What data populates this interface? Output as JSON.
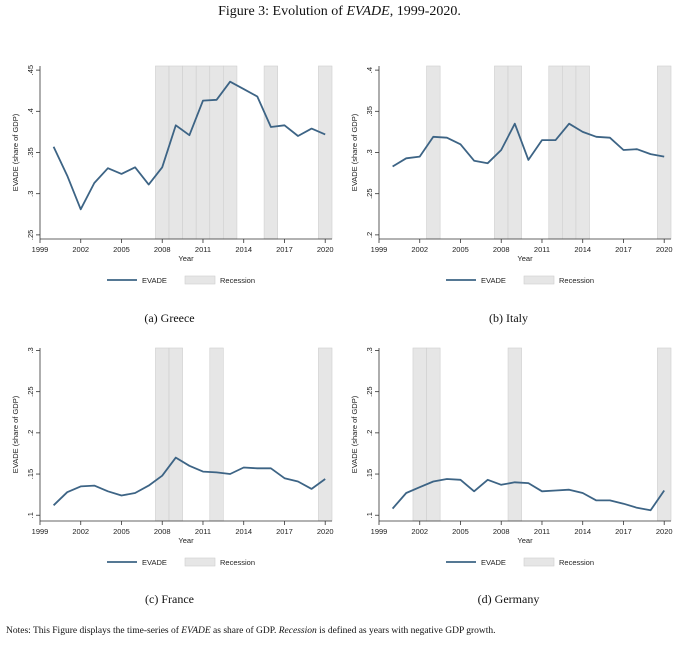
{
  "figure": {
    "title_prefix": "Figure 3: Evolution of ",
    "title_em": "EVADE",
    "title_suffix": ", 1999-2020."
  },
  "notes": {
    "p1": "Notes: This Figure displays the time-series of ",
    "em1": "EVADE",
    "p2": " as share of GDP. ",
    "em2": "Recession",
    "p3": " is defined as years with negative GDP growth."
  },
  "colors": {
    "line": "#3d6485",
    "recession": "#e6e6e6",
    "recession_edge": "#cfcfcf",
    "axis": "#333333"
  },
  "chart_data": [
    {
      "type": "line",
      "caption": "(a) Greece",
      "xlabel": "Year",
      "ylabel": "EVADE (share of GDP)",
      "x_ticks": [
        1999,
        2002,
        2005,
        2008,
        2011,
        2014,
        2017,
        2020
      ],
      "xlim": [
        1999,
        2020.5
      ],
      "y_ticks": [
        0.25,
        0.3,
        0.35,
        0.4,
        0.45
      ],
      "y_tick_labels": [
        ".25",
        ".3",
        ".35",
        ".4",
        ".45"
      ],
      "ylim": [
        0.245,
        0.455
      ],
      "legend": [
        "EVADE",
        "Recession"
      ],
      "recession_years": [
        2008,
        2009,
        2010,
        2011,
        2012,
        2013,
        2016,
        2020
      ],
      "series": [
        {
          "name": "EVADE",
          "x": [
            2000,
            2001,
            2002,
            2003,
            2004,
            2005,
            2006,
            2007,
            2008,
            2009,
            2010,
            2011,
            2012,
            2013,
            2014,
            2015,
            2016,
            2017,
            2018,
            2019,
            2020
          ],
          "y": [
            0.357,
            0.322,
            0.281,
            0.313,
            0.331,
            0.324,
            0.332,
            0.311,
            0.332,
            0.383,
            0.371,
            0.413,
            0.414,
            0.436,
            0.427,
            0.418,
            0.381,
            0.383,
            0.37,
            0.379,
            0.372
          ]
        }
      ]
    },
    {
      "type": "line",
      "caption": "(b) Italy",
      "xlabel": "Year",
      "ylabel": "EVADE (share of GDP)",
      "x_ticks": [
        1999,
        2002,
        2005,
        2008,
        2011,
        2014,
        2017,
        2020
      ],
      "xlim": [
        1999,
        2020.5
      ],
      "y_ticks": [
        0.2,
        0.25,
        0.3,
        0.35,
        0.4
      ],
      "y_tick_labels": [
        ".2",
        ".25",
        ".3",
        ".35",
        ".4"
      ],
      "ylim": [
        0.195,
        0.405
      ],
      "legend": [
        "EVADE",
        "Recession"
      ],
      "recession_years": [
        2003,
        2008,
        2009,
        2012,
        2013,
        2014,
        2020
      ],
      "series": [
        {
          "name": "EVADE",
          "x": [
            2000,
            2001,
            2002,
            2003,
            2004,
            2005,
            2006,
            2007,
            2008,
            2009,
            2010,
            2011,
            2012,
            2013,
            2014,
            2015,
            2016,
            2017,
            2018,
            2019,
            2020
          ],
          "y": [
            0.283,
            0.293,
            0.295,
            0.319,
            0.318,
            0.31,
            0.29,
            0.287,
            0.303,
            0.335,
            0.291,
            0.315,
            0.315,
            0.335,
            0.325,
            0.319,
            0.318,
            0.303,
            0.304,
            0.298,
            0.295
          ]
        }
      ]
    },
    {
      "type": "line",
      "caption": "(c) France",
      "xlabel": "Year",
      "ylabel": "EVADE (share of GDP)",
      "x_ticks": [
        1999,
        2002,
        2005,
        2008,
        2011,
        2014,
        2017,
        2020
      ],
      "xlim": [
        1999,
        2020.5
      ],
      "y_ticks": [
        0.1,
        0.15,
        0.2,
        0.25,
        0.3
      ],
      "y_tick_labels": [
        ".1",
        ".15",
        ".2",
        ".25",
        ".3"
      ],
      "ylim": [
        0.093,
        0.303
      ],
      "legend": [
        "EVADE",
        "Recession"
      ],
      "recession_years": [
        2008,
        2009,
        2012,
        2020
      ],
      "series": [
        {
          "name": "EVADE",
          "x": [
            2000,
            2001,
            2002,
            2003,
            2004,
            2005,
            2006,
            2007,
            2008,
            2009,
            2010,
            2011,
            2012,
            2013,
            2014,
            2015,
            2016,
            2017,
            2018,
            2019,
            2020
          ],
          "y": [
            0.112,
            0.128,
            0.135,
            0.136,
            0.129,
            0.124,
            0.127,
            0.136,
            0.148,
            0.17,
            0.16,
            0.153,
            0.152,
            0.15,
            0.158,
            0.157,
            0.157,
            0.145,
            0.141,
            0.132,
            0.144
          ]
        }
      ]
    },
    {
      "type": "line",
      "caption": "(d) Germany",
      "xlabel": "Year",
      "ylabel": "EVADE (share of GDP)",
      "x_ticks": [
        1999,
        2002,
        2005,
        2008,
        2011,
        2014,
        2017,
        2020
      ],
      "xlim": [
        1999,
        2020.5
      ],
      "y_ticks": [
        0.1,
        0.15,
        0.2,
        0.25,
        0.3
      ],
      "y_tick_labels": [
        ".1",
        ".15",
        ".2",
        ".25",
        ".3"
      ],
      "ylim": [
        0.093,
        0.303
      ],
      "legend": [
        "EVADE",
        "Recession"
      ],
      "recession_years": [
        2002,
        2003,
        2009,
        2020
      ],
      "series": [
        {
          "name": "EVADE",
          "x": [
            2000,
            2001,
            2002,
            2003,
            2004,
            2005,
            2006,
            2007,
            2008,
            2009,
            2010,
            2011,
            2012,
            2013,
            2014,
            2015,
            2016,
            2017,
            2018,
            2019,
            2020
          ],
          "y": [
            0.108,
            0.127,
            0.134,
            0.141,
            0.144,
            0.143,
            0.129,
            0.143,
            0.137,
            0.14,
            0.139,
            0.129,
            0.13,
            0.131,
            0.127,
            0.118,
            0.118,
            0.114,
            0.109,
            0.106,
            0.13
          ]
        }
      ]
    }
  ]
}
